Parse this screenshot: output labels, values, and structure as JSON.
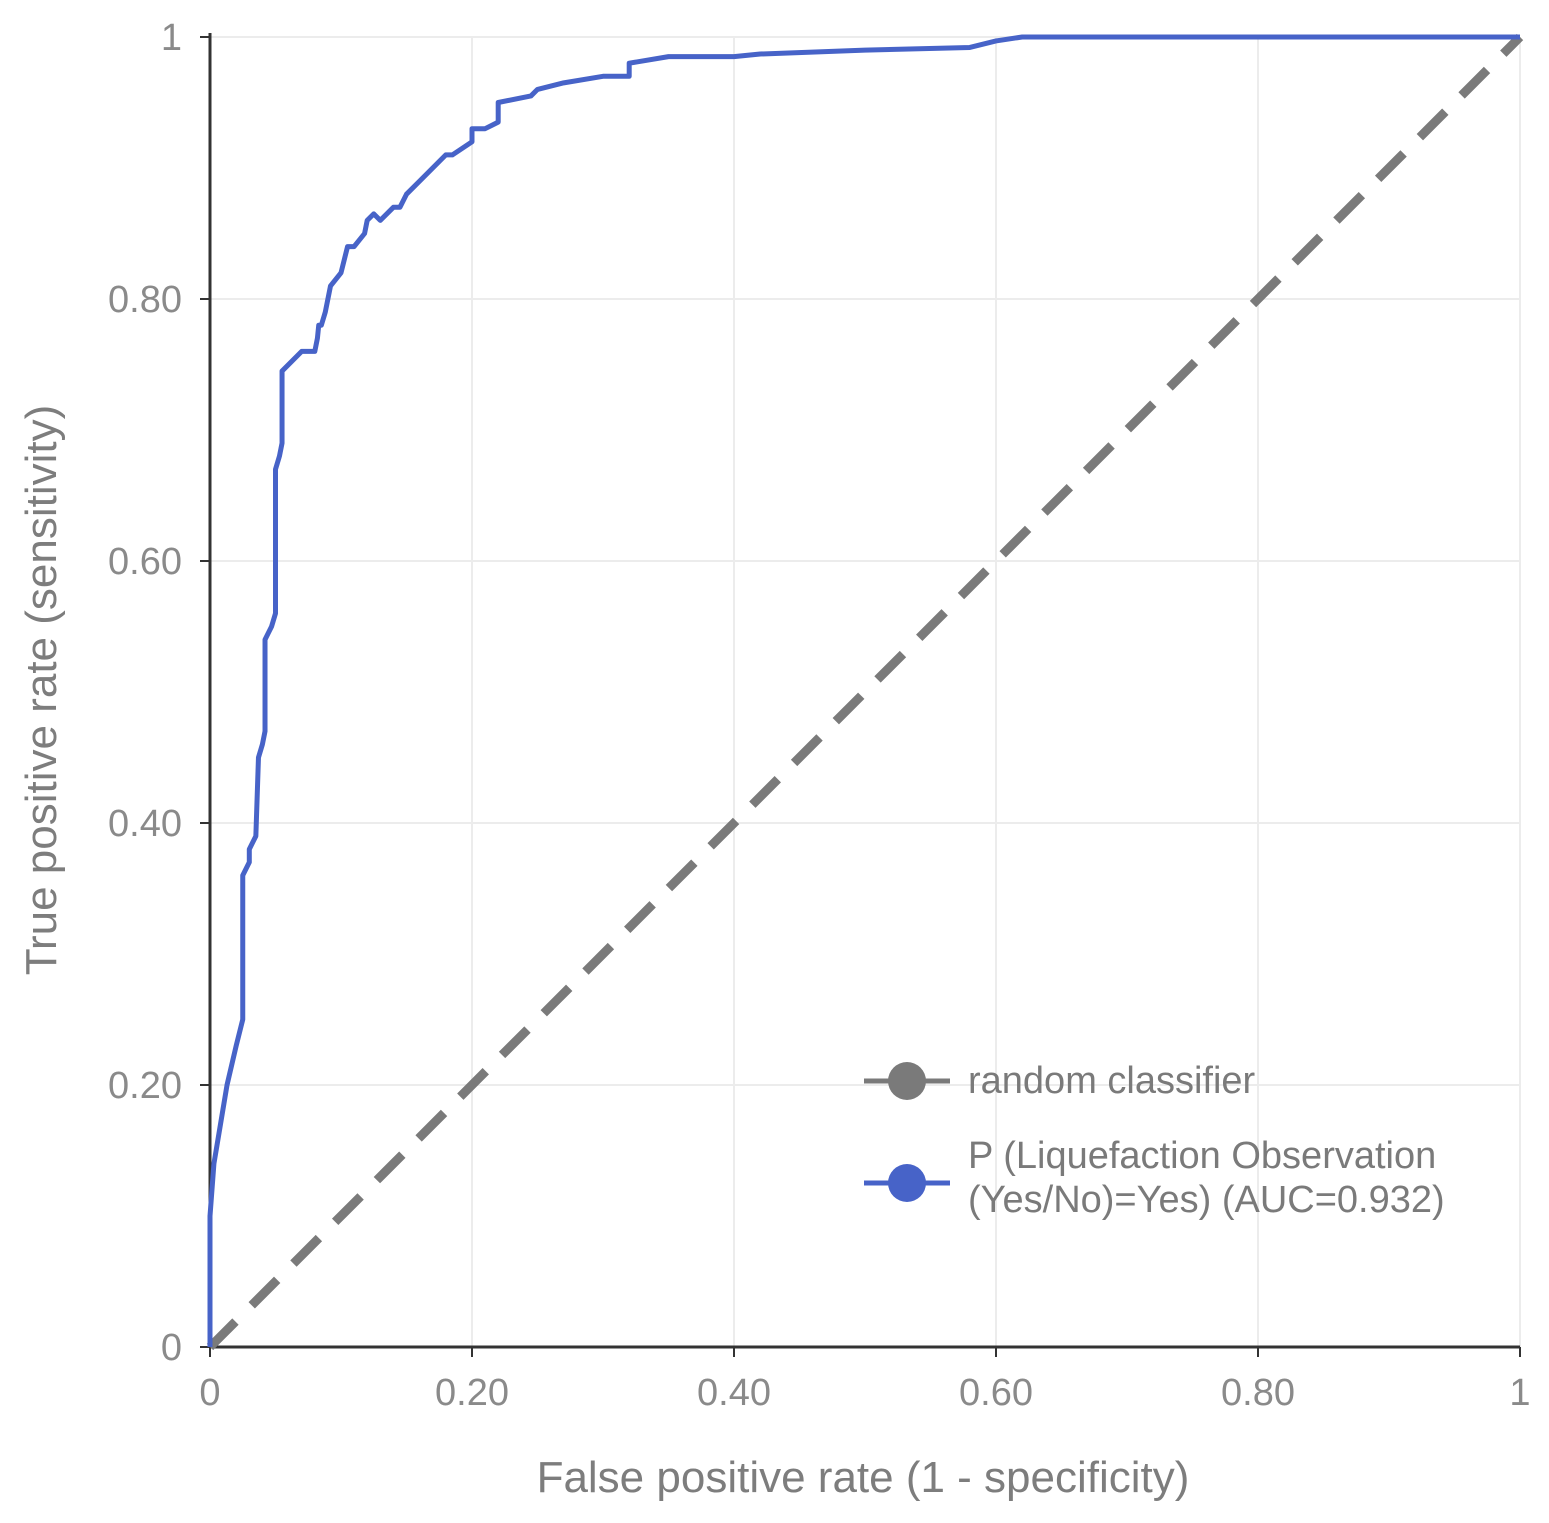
{
  "chart_data": {
    "type": "line",
    "title": "",
    "xlabel": "False positive rate (1 - specificity)",
    "ylabel": "True positive rate (sensitivity)",
    "xlim": [
      0,
      1
    ],
    "ylim": [
      0,
      1
    ],
    "x_ticks": [
      0,
      0.2,
      0.4,
      0.6,
      0.8,
      1
    ],
    "x_tick_labels": [
      "0",
      "0.20",
      "0.40",
      "0.60",
      "0.80",
      "1"
    ],
    "y_ticks": [
      0,
      0.2,
      0.4,
      0.6,
      0.8,
      1
    ],
    "y_tick_labels": [
      "0",
      "0.20",
      "0.40",
      "0.60",
      "0.80",
      "1"
    ],
    "grid": true,
    "legend_position": "bottom-right",
    "series": [
      {
        "name": "random classifier",
        "style": "dashed",
        "color": "#7a7a7a",
        "x": [
          0,
          1
        ],
        "y": [
          0,
          1
        ]
      },
      {
        "name": "P (Liquefaction Observation (Yes/No)=Yes) (AUC=0.932)",
        "style": "solid",
        "color": "#4763c8",
        "x": [
          0,
          0,
          0.003,
          0.008,
          0.013,
          0.02,
          0.025,
          0.025,
          0.03,
          0.03,
          0.035,
          0.037,
          0.04,
          0.042,
          0.042,
          0.047,
          0.05,
          0.05,
          0.053,
          0.055,
          0.055,
          0.07,
          0.08,
          0.082,
          0.083,
          0.085,
          0.088,
          0.092,
          0.1,
          0.105,
          0.11,
          0.118,
          0.12,
          0.125,
          0.13,
          0.14,
          0.145,
          0.15,
          0.16,
          0.17,
          0.18,
          0.185,
          0.2,
          0.2,
          0.21,
          0.22,
          0.22,
          0.245,
          0.25,
          0.27,
          0.3,
          0.32,
          0.32,
          0.35,
          0.4,
          0.42,
          0.5,
          0.58,
          0.6,
          0.62,
          1
        ],
        "y": [
          0,
          0.1,
          0.14,
          0.17,
          0.2,
          0.23,
          0.25,
          0.36,
          0.37,
          0.38,
          0.39,
          0.45,
          0.46,
          0.47,
          0.54,
          0.55,
          0.56,
          0.67,
          0.68,
          0.69,
          0.745,
          0.76,
          0.76,
          0.77,
          0.78,
          0.78,
          0.79,
          0.81,
          0.82,
          0.84,
          0.84,
          0.85,
          0.86,
          0.865,
          0.86,
          0.87,
          0.87,
          0.88,
          0.89,
          0.9,
          0.91,
          0.91,
          0.92,
          0.93,
          0.93,
          0.935,
          0.95,
          0.955,
          0.96,
          0.965,
          0.97,
          0.97,
          0.98,
          0.985,
          0.985,
          0.987,
          0.99,
          0.992,
          0.997,
          1.0,
          1.0
        ]
      }
    ]
  }
}
